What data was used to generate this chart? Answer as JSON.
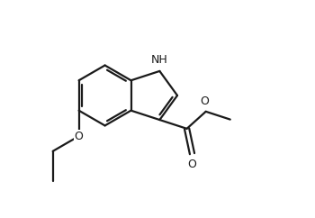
{
  "background_color": "#ffffff",
  "line_color": "#1a1a1a",
  "line_width": 1.6,
  "font_size": 9.0,
  "fig_width": 3.5,
  "fig_height": 2.42,
  "dpi": 100,
  "label_NH": "NH",
  "label_O": "O"
}
